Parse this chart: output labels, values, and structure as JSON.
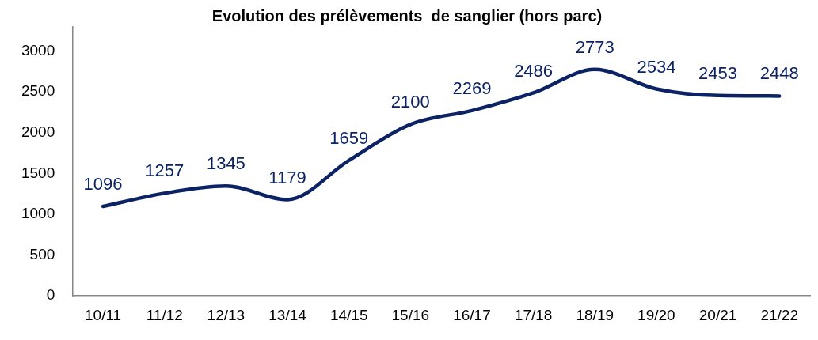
{
  "chart_data": {
    "type": "line",
    "title": "Evolution des prélèvements  de sanglier (hors parc)",
    "categories": [
      "10/11",
      "11/12",
      "12/13",
      "13/14",
      "14/15",
      "15/16",
      "16/17",
      "17/18",
      "18/19",
      "19/20",
      "20/21",
      "21/22"
    ],
    "series": [
      {
        "color": "#0b2265",
        "values": [
          1096,
          1257,
          1345,
          1179,
          1659,
          2100,
          2269,
          2486,
          2773,
          2534,
          2453,
          2448
        ]
      }
    ],
    "ylim": [
      0,
      3300
    ],
    "yticks": [
      0,
      500,
      1000,
      1500,
      2000,
      2500,
      3000
    ],
    "grid": false,
    "legend": false,
    "marker": "none",
    "line_style": "solid",
    "data_labels": true
  }
}
